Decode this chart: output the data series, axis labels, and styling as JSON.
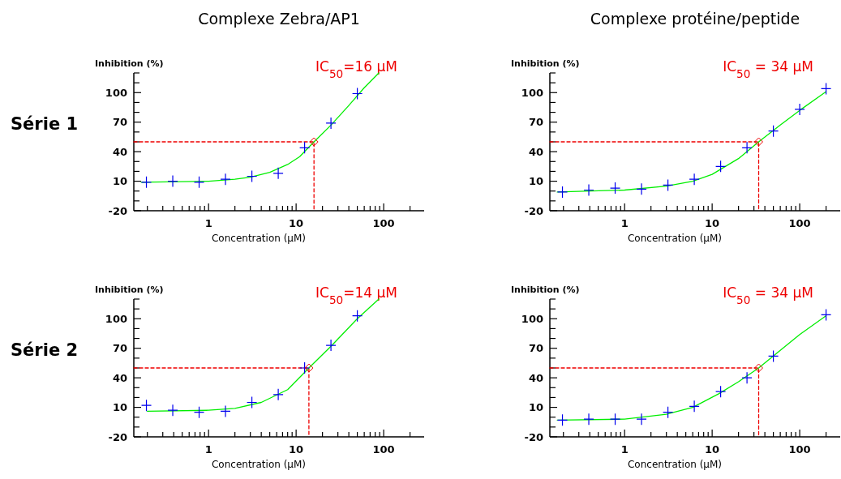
{
  "chart_data": [
    {
      "type": "scatter",
      "title": "Complexe Zebra/AP1",
      "xlabel": "Concentration (µM)",
      "ylabel": "Inhibition (%)",
      "log": "x",
      "xlim": [
        0.14,
        290
      ],
      "ylim": [
        -20,
        120
      ],
      "xticks": [
        {
          "value": 0.2,
          "label": null
        },
        {
          "value": 0.3,
          "label": null
        },
        {
          "value": 0.4,
          "label": null
        },
        {
          "value": 0.5,
          "label": null
        },
        {
          "value": 0.6,
          "label": null
        },
        {
          "value": 0.7,
          "label": null
        },
        {
          "value": 0.8,
          "label": null
        },
        {
          "value": 0.9,
          "label": null
        },
        1,
        {
          "value": 2,
          "label": null
        },
        {
          "value": 3,
          "label": null
        },
        {
          "value": 4,
          "label": null
        },
        {
          "value": 5,
          "label": null
        },
        {
          "value": 6,
          "label": null
        },
        {
          "value": 7,
          "label": null
        },
        {
          "value": 8,
          "label": null
        },
        {
          "value": 9,
          "label": null
        },
        10,
        {
          "value": 20,
          "label": null
        },
        {
          "value": 30,
          "label": null
        },
        {
          "value": 40,
          "label": null
        },
        {
          "value": 50,
          "label": null
        },
        {
          "value": 60,
          "label": null
        },
        {
          "value": 70,
          "label": null
        },
        {
          "value": 80,
          "label": null
        },
        {
          "value": 90,
          "label": null
        },
        100,
        {
          "value": 200,
          "label": null
        }
      ],
      "yticks": [
        -20,
        {
          "value": -10,
          "label": null
        },
        {
          "value": 0,
          "label": null
        },
        10,
        {
          "value": 20,
          "label": null
        },
        {
          "value": 30,
          "label": null
        },
        40,
        {
          "value": 50,
          "label": null
        },
        {
          "value": 60,
          "label": null
        },
        70,
        {
          "value": 80,
          "label": null
        },
        {
          "value": 90,
          "label": null
        },
        100,
        {
          "value": 110,
          "label": null
        },
        {
          "value": 120,
          "label": null
        }
      ],
      "annotations": [
        "IC$_{50}$=16 µM",
        "Série 1"
      ],
      "series": [
        {
          "type": "line",
          "color": "#00ee00",
          "line_style": "solid",
          "marker": "none",
          "x": [
            0.17,
            1,
            2,
            3,
            5,
            8,
            11,
            16,
            25,
            40,
            60,
            88
          ],
          "values": [
            9,
            10,
            12,
            14,
            19,
            27,
            35,
            50,
            67,
            87,
            105,
            120
          ]
        },
        {
          "type": "line",
          "color": "#ee0000",
          "line_style": "dashed",
          "marker": "none",
          "x": [
            0.14,
            16,
            16
          ],
          "values": [
            50,
            50,
            -20
          ]
        },
        {
          "color": "#0000ee",
          "marker": "cross",
          "x": [
            0.195,
            0.39,
            0.78,
            1.56,
            3.125,
            6.25,
            12.5,
            25,
            50
          ],
          "values": [
            9,
            10,
            9,
            12,
            15,
            18,
            44,
            69,
            99
          ]
        },
        {
          "color": "#ee0000",
          "marker": "diamond",
          "x": [
            16
          ],
          "values": [
            50
          ]
        }
      ]
    },
    {
      "type": "scatter",
      "title": "Complexe protéine/peptide",
      "xlabel": "Concentration (µM)",
      "ylabel": "Inhibition (%)",
      "log": "x",
      "xlim": [
        0.14,
        290
      ],
      "ylim": [
        -20,
        120
      ],
      "xticks": [
        {
          "value": 0.2,
          "label": null
        },
        {
          "value": 0.3,
          "label": null
        },
        {
          "value": 0.4,
          "label": null
        },
        {
          "value": 0.5,
          "label": null
        },
        {
          "value": 0.6,
          "label": null
        },
        {
          "value": 0.7,
          "label": null
        },
        {
          "value": 0.8,
          "label": null
        },
        {
          "value": 0.9,
          "label": null
        },
        1,
        {
          "value": 2,
          "label": null
        },
        {
          "value": 3,
          "label": null
        },
        {
          "value": 4,
          "label": null
        },
        {
          "value": 5,
          "label": null
        },
        {
          "value": 6,
          "label": null
        },
        {
          "value": 7,
          "label": null
        },
        {
          "value": 8,
          "label": null
        },
        {
          "value": 9,
          "label": null
        },
        10,
        {
          "value": 20,
          "label": null
        },
        {
          "value": 30,
          "label": null
        },
        {
          "value": 40,
          "label": null
        },
        {
          "value": 50,
          "label": null
        },
        {
          "value": 60,
          "label": null
        },
        {
          "value": 70,
          "label": null
        },
        {
          "value": 80,
          "label": null
        },
        {
          "value": 90,
          "label": null
        },
        100,
        {
          "value": 200,
          "label": null
        }
      ],
      "yticks": [
        -20,
        {
          "value": -10,
          "label": null
        },
        {
          "value": 0,
          "label": null
        },
        10,
        {
          "value": 20,
          "label": null
        },
        {
          "value": 30,
          "label": null
        },
        40,
        {
          "value": 50,
          "label": null
        },
        {
          "value": 60,
          "label": null
        },
        70,
        {
          "value": 80,
          "label": null
        },
        {
          "value": 90,
          "label": null
        },
        100,
        {
          "value": 110,
          "label": null
        },
        {
          "value": 120,
          "label": null
        }
      ],
      "annotations": [
        "IC$_{50}$ = 34 µM"
      ],
      "series": [
        {
          "type": "line",
          "color": "#00ee00",
          "line_style": "solid",
          "marker": "none",
          "x": [
            0.17,
            1,
            3,
            6,
            10,
            20,
            34,
            60,
            100,
            200
          ],
          "values": [
            -1,
            1,
            5,
            10,
            17,
            33,
            50,
            67,
            82,
            101
          ]
        },
        {
          "type": "line",
          "color": "#ee0000",
          "line_style": "dashed",
          "marker": "none",
          "x": [
            0.14,
            34,
            34
          ],
          "values": [
            50,
            50,
            -20
          ]
        },
        {
          "color": "#0000ee",
          "marker": "cross",
          "x": [
            0.195,
            0.39,
            0.78,
            1.56,
            3.125,
            6.25,
            12.5,
            25,
            50,
            100,
            200
          ],
          "values": [
            -1,
            1,
            3,
            2,
            6,
            12,
            25,
            44,
            61,
            83,
            104
          ]
        },
        {
          "color": "#ee0000",
          "marker": "diamond",
          "x": [
            34
          ],
          "values": [
            50
          ]
        }
      ]
    },
    {
      "type": "scatter",
      "xlabel": "Concentration (µM)",
      "ylabel": "Inhibition (%)",
      "log": "x",
      "xlim": [
        0.14,
        290
      ],
      "ylim": [
        -20,
        120
      ],
      "xticks": [
        {
          "value": 0.2,
          "label": null
        },
        {
          "value": 0.3,
          "label": null
        },
        {
          "value": 0.4,
          "label": null
        },
        {
          "value": 0.5,
          "label": null
        },
        {
          "value": 0.6,
          "label": null
        },
        {
          "value": 0.7,
          "label": null
        },
        {
          "value": 0.8,
          "label": null
        },
        {
          "value": 0.9,
          "label": null
        },
        1,
        {
          "value": 2,
          "label": null
        },
        {
          "value": 3,
          "label": null
        },
        {
          "value": 4,
          "label": null
        },
        {
          "value": 5,
          "label": null
        },
        {
          "value": 6,
          "label": null
        },
        {
          "value": 7,
          "label": null
        },
        {
          "value": 8,
          "label": null
        },
        {
          "value": 9,
          "label": null
        },
        10,
        {
          "value": 20,
          "label": null
        },
        {
          "value": 30,
          "label": null
        },
        {
          "value": 40,
          "label": null
        },
        {
          "value": 50,
          "label": null
        },
        {
          "value": 60,
          "label": null
        },
        {
          "value": 70,
          "label": null
        },
        {
          "value": 80,
          "label": null
        },
        {
          "value": 90,
          "label": null
        },
        100,
        {
          "value": 200,
          "label": null
        }
      ],
      "yticks": [
        -20,
        {
          "value": -10,
          "label": null
        },
        {
          "value": 0,
          "label": null
        },
        10,
        {
          "value": 20,
          "label": null
        },
        {
          "value": 30,
          "label": null
        },
        40,
        {
          "value": 50,
          "label": null
        },
        {
          "value": 60,
          "label": null
        },
        70,
        {
          "value": 80,
          "label": null
        },
        {
          "value": 90,
          "label": null
        },
        100,
        {
          "value": 110,
          "label": null
        },
        {
          "value": 120,
          "label": null
        }
      ],
      "annotations": [
        "IC$_{50}$=14 µM",
        "Série 2"
      ],
      "series": [
        {
          "type": "line",
          "color": "#00ee00",
          "line_style": "solid",
          "marker": "none",
          "x": [
            0.2,
            1,
            2,
            4,
            8,
            14,
            25,
            50,
            88
          ],
          "values": [
            6,
            7,
            9,
            15,
            28,
            50,
            72,
            100,
            120
          ]
        },
        {
          "type": "line",
          "color": "#ee0000",
          "line_style": "dashed",
          "marker": "none",
          "x": [
            0.14,
            14,
            14
          ],
          "values": [
            50,
            50,
            -20
          ]
        },
        {
          "color": "#0000ee",
          "marker": "cross",
          "x": [
            0.195,
            0.39,
            0.78,
            1.56,
            3.125,
            6.25,
            12.5,
            25,
            50
          ],
          "values": [
            12,
            7,
            5,
            6,
            15,
            23,
            50,
            73,
            103
          ]
        },
        {
          "color": "#ee0000",
          "marker": "diamond",
          "x": [
            14
          ],
          "values": [
            50
          ]
        }
      ]
    },
    {
      "type": "scatter",
      "xlabel": "Concentration (µM)",
      "ylabel": "Inhibition (%)",
      "log": "x",
      "xlim": [
        0.14,
        290
      ],
      "ylim": [
        -20,
        120
      ],
      "xticks": [
        {
          "value": 0.2,
          "label": null
        },
        {
          "value": 0.3,
          "label": null
        },
        {
          "value": 0.4,
          "label": null
        },
        {
          "value": 0.5,
          "label": null
        },
        {
          "value": 0.6,
          "label": null
        },
        {
          "value": 0.7,
          "label": null
        },
        {
          "value": 0.8,
          "label": null
        },
        {
          "value": 0.9,
          "label": null
        },
        1,
        {
          "value": 2,
          "label": null
        },
        {
          "value": 3,
          "label": null
        },
        {
          "value": 4,
          "label": null
        },
        {
          "value": 5,
          "label": null
        },
        {
          "value": 6,
          "label": null
        },
        {
          "value": 7,
          "label": null
        },
        {
          "value": 8,
          "label": null
        },
        {
          "value": 9,
          "label": null
        },
        10,
        {
          "value": 20,
          "label": null
        },
        {
          "value": 30,
          "label": null
        },
        {
          "value": 40,
          "label": null
        },
        {
          "value": 50,
          "label": null
        },
        {
          "value": 60,
          "label": null
        },
        {
          "value": 70,
          "label": null
        },
        {
          "value": 80,
          "label": null
        },
        {
          "value": 90,
          "label": null
        },
        100,
        {
          "value": 200,
          "label": null
        }
      ],
      "yticks": [
        -20,
        {
          "value": -10,
          "label": null
        },
        {
          "value": 0,
          "label": null
        },
        10,
        {
          "value": 20,
          "label": null
        },
        {
          "value": 30,
          "label": null
        },
        40,
        {
          "value": 50,
          "label": null
        },
        {
          "value": 60,
          "label": null
        },
        70,
        {
          "value": 80,
          "label": null
        },
        {
          "value": 90,
          "label": null
        },
        100,
        {
          "value": 110,
          "label": null
        },
        {
          "value": 120,
          "label": null
        }
      ],
      "annotations": [
        "IC$_{50}$ = 34 µM"
      ],
      "series": [
        {
          "type": "line",
          "color": "#00ee00",
          "line_style": "solid",
          "marker": "none",
          "x": [
            0.17,
            1,
            3,
            6,
            12,
            20,
            34,
            60,
            100,
            200
          ],
          "values": [
            -3,
            -2,
            3,
            10,
            24,
            36,
            50,
            68,
            84,
            103
          ]
        },
        {
          "type": "line",
          "color": "#ee0000",
          "line_style": "dashed",
          "marker": "none",
          "x": [
            0.14,
            34,
            34
          ],
          "values": [
            50,
            50,
            -20
          ]
        },
        {
          "color": "#0000ee",
          "marker": "cross",
          "x": [
            0.195,
            0.39,
            0.78,
            1.56,
            3.125,
            6.25,
            12.5,
            25,
            50,
            200
          ],
          "values": [
            -3,
            -2,
            -2,
            -2,
            5,
            11,
            26,
            40,
            62,
            104
          ]
        },
        {
          "color": "#ee0000",
          "marker": "diamond",
          "x": [
            34
          ],
          "values": [
            50
          ]
        }
      ]
    }
  ]
}
